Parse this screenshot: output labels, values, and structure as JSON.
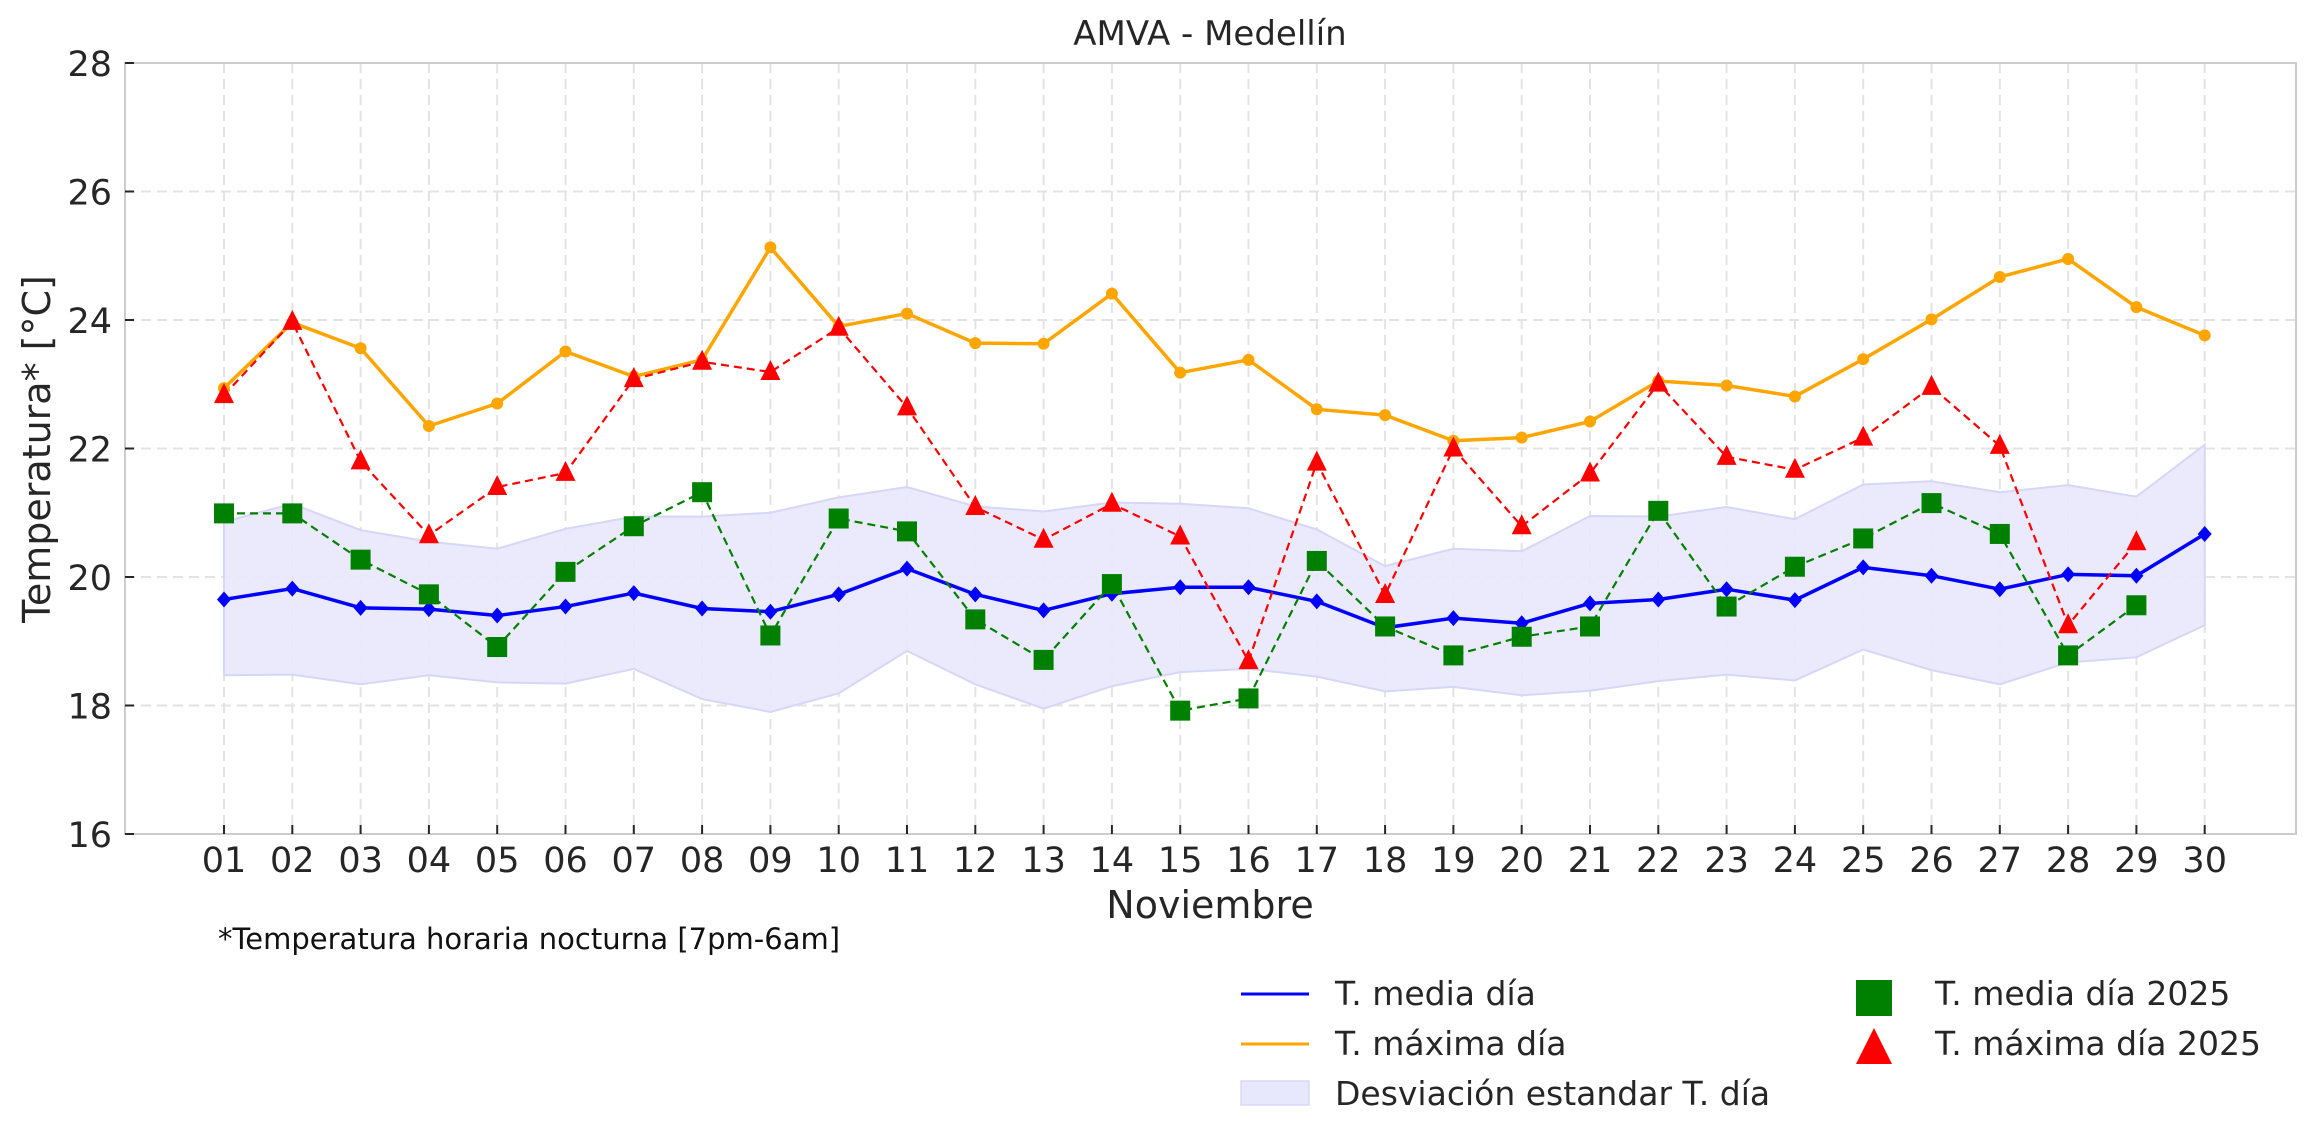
{
  "chart_data": {
    "type": "line",
    "title": "AMVA - Medellín",
    "xlabel": "Noviembre",
    "ylabel": "Temperatura* [°C]",
    "footnote": "*Temperatura horaria nocturna [7pm-6am]",
    "ylim": [
      16,
      28
    ],
    "yticks": [
      16,
      18,
      20,
      22,
      24,
      26,
      28
    ],
    "grid": true,
    "legend_position": "bottom-right",
    "categories": [
      "01",
      "02",
      "03",
      "04",
      "05",
      "06",
      "07",
      "08",
      "09",
      "10",
      "11",
      "12",
      "13",
      "14",
      "15",
      "16",
      "17",
      "18",
      "19",
      "20",
      "21",
      "22",
      "23",
      "24",
      "25",
      "26",
      "27",
      "28",
      "29",
      "30"
    ],
    "series": [
      {
        "name": "T. media día",
        "style": "solid-line-diamond",
        "color": "#0000ff",
        "values": [
          19.65,
          19.82,
          19.52,
          19.5,
          19.4,
          19.54,
          19.75,
          19.51,
          19.46,
          19.73,
          20.13,
          19.73,
          19.48,
          19.74,
          19.84,
          19.84,
          19.62,
          19.21,
          19.36,
          19.28,
          19.59,
          19.65,
          19.81,
          19.64,
          20.15,
          20.02,
          19.81,
          20.04,
          20.02,
          20.67
        ]
      },
      {
        "name": "T. máxima día",
        "style": "solid-line-circle",
        "color": "#ffa500",
        "values": [
          22.94,
          23.96,
          23.56,
          22.35,
          22.7,
          23.51,
          23.12,
          23.38,
          25.13,
          23.9,
          24.1,
          23.64,
          23.63,
          24.41,
          23.18,
          23.38,
          22.61,
          22.52,
          22.12,
          22.17,
          22.42,
          23.05,
          22.98,
          22.81,
          23.39,
          24.01,
          24.67,
          24.95,
          24.2,
          23.76
        ]
      },
      {
        "name": "Desviación estandar T. día",
        "style": "band",
        "color": "#e8e8fc",
        "upper": [
          20.86,
          21.14,
          20.73,
          20.55,
          20.44,
          20.75,
          20.94,
          20.94,
          21.0,
          21.24,
          21.4,
          21.1,
          21.02,
          21.16,
          21.14,
          21.07,
          20.74,
          20.17,
          20.44,
          20.4,
          20.95,
          20.94,
          21.09,
          20.9,
          21.44,
          21.49,
          21.32,
          21.43,
          21.25,
          22.06
        ],
        "lower": [
          18.47,
          18.48,
          18.33,
          18.47,
          18.36,
          18.34,
          18.57,
          18.1,
          17.9,
          18.19,
          18.85,
          18.33,
          17.95,
          18.3,
          18.52,
          18.57,
          18.45,
          18.22,
          18.29,
          18.16,
          18.23,
          18.38,
          18.48,
          18.39,
          18.87,
          18.55,
          18.33,
          18.67,
          18.75,
          19.25
        ]
      },
      {
        "name": "T. media día 2025",
        "style": "dashed-line-square",
        "color": "#008000",
        "values": [
          20.99,
          20.99,
          20.27,
          19.73,
          18.91,
          20.08,
          20.79,
          21.32,
          19.09,
          20.91,
          20.71,
          19.34,
          18.71,
          19.89,
          17.92,
          18.11,
          20.25,
          19.23,
          18.78,
          19.07,
          19.23,
          21.03,
          19.54,
          20.16,
          20.6,
          21.15,
          20.67,
          18.78,
          19.56,
          null
        ]
      },
      {
        "name": "T. máxima día 2025",
        "style": "dashed-line-triangle",
        "color": "#ff0000",
        "values": [
          22.83,
          23.97,
          21.8,
          20.65,
          21.4,
          21.62,
          23.08,
          23.35,
          23.19,
          23.88,
          22.64,
          21.09,
          20.58,
          21.14,
          20.63,
          18.69,
          21.78,
          19.72,
          22.0,
          20.79,
          21.61,
          23.01,
          21.87,
          21.67,
          22.17,
          22.96,
          22.04,
          19.25,
          20.54,
          null
        ]
      }
    ]
  },
  "legend": {
    "items": [
      {
        "label": "T. media día",
        "color": "#0000ff",
        "kind": "line"
      },
      {
        "label": "T. máxima día",
        "color": "#ffa500",
        "kind": "line"
      },
      {
        "label": "Desviación estandar T. día",
        "color": "#e8e8fc",
        "kind": "patch"
      },
      {
        "label": "T. media día 2025",
        "color": "#008000",
        "kind": "square"
      },
      {
        "label": "T. máxima día 2025",
        "color": "#ff0000",
        "kind": "triangle"
      }
    ]
  }
}
